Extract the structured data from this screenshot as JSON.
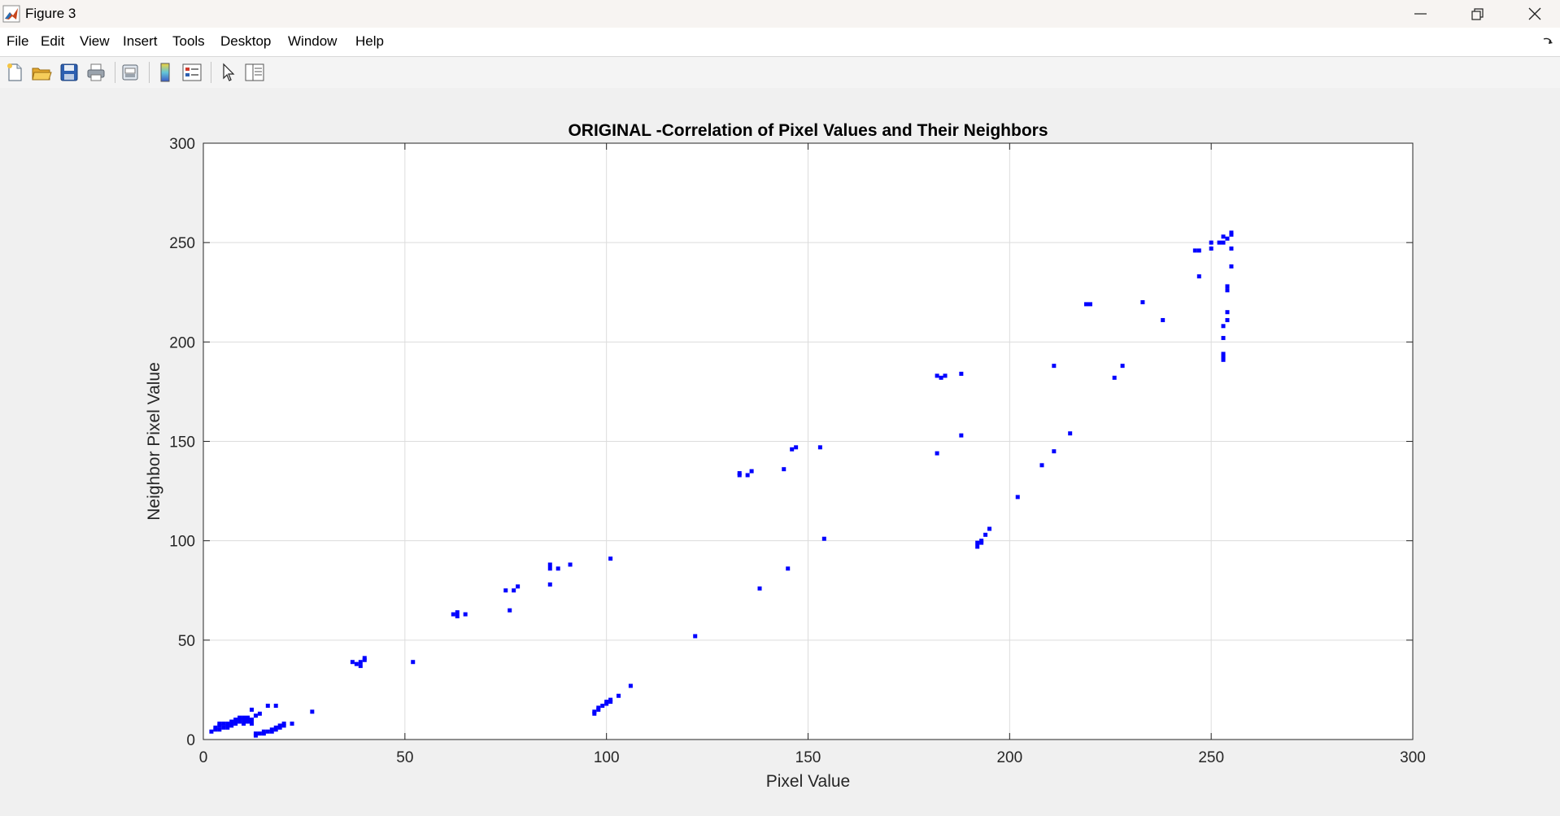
{
  "window": {
    "title": "Figure 3"
  },
  "menu": {
    "file": "File",
    "edit": "Edit",
    "view": "View",
    "insert": "Insert",
    "tools": "Tools",
    "desktop": "Desktop",
    "window": "Window",
    "help": "Help"
  },
  "toolbar_icons": [
    "new-figure-icon",
    "open-file-icon",
    "save-icon",
    "print-icon",
    "print-preview-icon",
    "colorbar-icon",
    "legend-icon",
    "edit-plot-arrow-icon",
    "property-inspector-icon"
  ],
  "colors": {
    "marker": "#0000ff",
    "grid": "#dcdcdc",
    "axes_bg": "#ffffff",
    "figure_bg": "#f0f0f0"
  },
  "chart_data": {
    "type": "scatter",
    "title": "ORIGINAL -Correlation of Pixel Values and Their Neighbors",
    "xlabel": "Pixel Value",
    "ylabel": "Neighbor Pixel Value",
    "xlim": [
      0,
      300
    ],
    "ylim": [
      0,
      300
    ],
    "xticks": [
      0,
      50,
      100,
      150,
      200,
      250,
      300
    ],
    "yticks": [
      0,
      50,
      100,
      150,
      200,
      250,
      300
    ],
    "grid": true,
    "marker": "square",
    "points": [
      [
        2,
        4
      ],
      [
        3,
        5
      ],
      [
        3,
        6
      ],
      [
        4,
        5
      ],
      [
        4,
        7
      ],
      [
        4,
        8
      ],
      [
        5,
        6
      ],
      [
        5,
        8
      ],
      [
        6,
        6
      ],
      [
        6,
        7
      ],
      [
        6,
        8
      ],
      [
        7,
        7
      ],
      [
        7,
        8
      ],
      [
        7,
        9
      ],
      [
        8,
        8
      ],
      [
        8,
        9
      ],
      [
        8,
        10
      ],
      [
        9,
        9
      ],
      [
        9,
        10
      ],
      [
        9,
        11
      ],
      [
        10,
        8
      ],
      [
        10,
        10
      ],
      [
        10,
        11
      ],
      [
        11,
        9
      ],
      [
        11,
        10
      ],
      [
        11,
        11
      ],
      [
        12,
        8
      ],
      [
        12,
        10
      ],
      [
        12,
        15
      ],
      [
        13,
        12
      ],
      [
        14,
        13
      ],
      [
        16,
        17
      ],
      [
        18,
        17
      ],
      [
        13,
        2
      ],
      [
        13,
        3
      ],
      [
        14,
        3
      ],
      [
        15,
        3
      ],
      [
        15,
        4
      ],
      [
        16,
        4
      ],
      [
        17,
        4
      ],
      [
        17,
        5
      ],
      [
        18,
        5
      ],
      [
        18,
        6
      ],
      [
        19,
        6
      ],
      [
        19,
        7
      ],
      [
        20,
        7
      ],
      [
        20,
        8
      ],
      [
        22,
        8
      ],
      [
        27,
        14
      ],
      [
        37,
        39
      ],
      [
        38,
        38
      ],
      [
        39,
        37
      ],
      [
        39,
        39
      ],
      [
        40,
        40
      ],
      [
        40,
        41
      ],
      [
        52,
        39
      ],
      [
        62,
        63
      ],
      [
        63,
        62
      ],
      [
        63,
        64
      ],
      [
        65,
        63
      ],
      [
        75,
        75
      ],
      [
        76,
        65
      ],
      [
        77,
        75
      ],
      [
        78,
        77
      ],
      [
        86,
        78
      ],
      [
        86,
        86
      ],
      [
        86,
        88
      ],
      [
        88,
        86
      ],
      [
        91,
        88
      ],
      [
        97,
        13
      ],
      [
        97,
        14
      ],
      [
        98,
        15
      ],
      [
        98,
        16
      ],
      [
        99,
        17
      ],
      [
        100,
        18
      ],
      [
        100,
        19
      ],
      [
        101,
        19
      ],
      [
        101,
        20
      ],
      [
        101,
        91
      ],
      [
        103,
        22
      ],
      [
        106,
        27
      ],
      [
        122,
        52
      ],
      [
        133,
        133
      ],
      [
        133,
        134
      ],
      [
        135,
        133
      ],
      [
        136,
        135
      ],
      [
        138,
        76
      ],
      [
        144,
        136
      ],
      [
        145,
        86
      ],
      [
        146,
        146
      ],
      [
        147,
        147
      ],
      [
        153,
        147
      ],
      [
        154,
        101
      ],
      [
        182,
        144
      ],
      [
        182,
        183
      ],
      [
        183,
        182
      ],
      [
        184,
        183
      ],
      [
        188,
        184
      ],
      [
        188,
        153
      ],
      [
        192,
        97
      ],
      [
        192,
        99
      ],
      [
        193,
        99
      ],
      [
        193,
        100
      ],
      [
        194,
        103
      ],
      [
        195,
        106
      ],
      [
        202,
        122
      ],
      [
        208,
        138
      ],
      [
        211,
        145
      ],
      [
        211,
        188
      ],
      [
        215,
        154
      ],
      [
        219,
        219
      ],
      [
        220,
        219
      ],
      [
        226,
        182
      ],
      [
        228,
        188
      ],
      [
        233,
        220
      ],
      [
        238,
        211
      ],
      [
        246,
        246
      ],
      [
        247,
        246
      ],
      [
        247,
        233
      ],
      [
        250,
        247
      ],
      [
        250,
        250
      ],
      [
        252,
        250
      ],
      [
        253,
        250
      ],
      [
        253,
        253
      ],
      [
        253,
        202
      ],
      [
        253,
        208
      ],
      [
        253,
        191
      ],
      [
        253,
        192
      ],
      [
        253,
        193
      ],
      [
        253,
        194
      ],
      [
        254,
        211
      ],
      [
        254,
        215
      ],
      [
        254,
        226
      ],
      [
        254,
        228
      ],
      [
        254,
        252
      ],
      [
        255,
        238
      ],
      [
        255,
        247
      ],
      [
        255,
        254
      ],
      [
        255,
        255
      ]
    ]
  }
}
